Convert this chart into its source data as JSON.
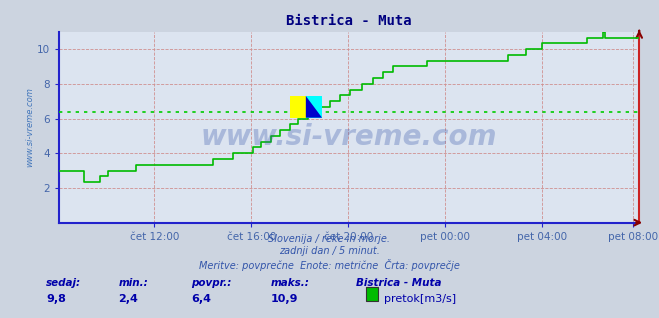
{
  "title": "Bistrica - Muta",
  "title_color": "#000080",
  "bg_color": "#ccd4e0",
  "plot_bg_color": "#dce4f0",
  "grid_color": "#d09090",
  "line_color": "#00bb00",
  "avg_line_color": "#00cc00",
  "avg_value": 6.4,
  "num_points": 288,
  "tick_color": "#4466aa",
  "watermark": "www.si-vreme.com",
  "watermark_color": "#3355aa",
  "watermark_alpha": 0.3,
  "subtitle1": "Slovenija / reke in morje.",
  "subtitle2": "zadnji dan / 5 minut.",
  "subtitle3": "Meritve: povprečne  Enote: metrične  Črta: povprečje",
  "subtitle_color": "#3355aa",
  "footer_sedaj_label": "sedaj:",
  "footer_min_label": "min.:",
  "footer_povpr_label": "povpr.:",
  "footer_maks_label": "maks.:",
  "footer_sedaj_val": "9,8",
  "footer_min_val": "2,4",
  "footer_povpr_val": "6,4",
  "footer_maks_val": "10,9",
  "footer_station": "Bistrica - Muta",
  "footer_legend_label": "pretok[m3/s]",
  "footer_label_color": "#0000aa",
  "footer_val_color": "#0000aa",
  "ylabel_text": "www.si-vreme.com",
  "ylabel_color": "#4477bb",
  "ylim": [
    0,
    11
  ],
  "yticks": [
    2,
    4,
    6,
    8,
    10
  ],
  "xtick_labels": [
    "čet 12:00",
    "čet 16:00",
    "čet 20:00",
    "pet 00:00",
    "pet 04:00",
    "pet 08:00"
  ],
  "xtick_positions_frac": [
    0.1667,
    0.3333,
    0.5,
    0.6667,
    0.8333,
    0.9896
  ],
  "spine_bottom_color": "#2222cc",
  "spine_right_color": "#cc2222",
  "arrow_color_bottom": "#880000",
  "arrow_color_right": "#880000"
}
